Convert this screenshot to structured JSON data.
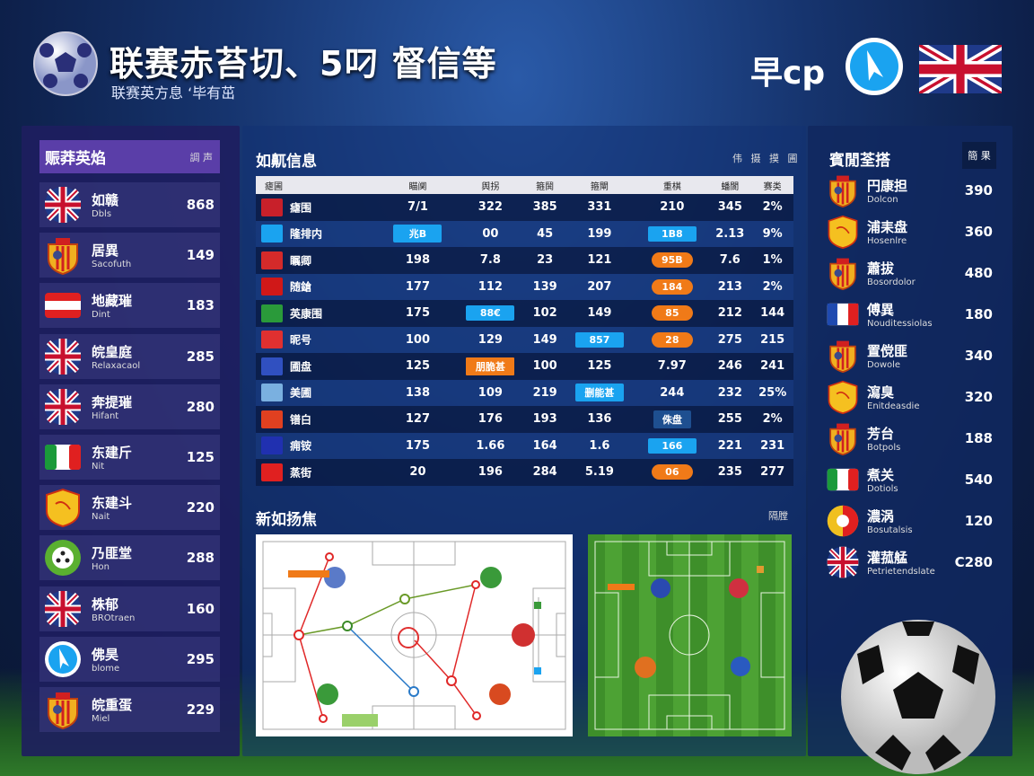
{
  "header": {
    "title": "联赛赤苔切、5叼 督信等",
    "subtitle": "联赛英方息 ‘毕有茁",
    "brand": "早cp",
    "logo_icon": "soccer-ball-icon",
    "brand_icon": "compass-logo-icon",
    "flag_icon": "uk-flag-icon"
  },
  "left_panel": {
    "title": "赈莽英焰",
    "badge": "調 声",
    "items": [
      {
        "name": "如赣",
        "sub": "Dbls",
        "value": "868",
        "icon": "uk"
      },
      {
        "name": "居異",
        "sub": "Sacofuth",
        "value": "149",
        "icon": "crest"
      },
      {
        "name": "地藏璀",
        "sub": "Dint",
        "value": "183",
        "icon": "austria"
      },
      {
        "name": "皖皇庭",
        "sub": "Relaxacaol",
        "value": "285",
        "icon": "uk"
      },
      {
        "name": "奔提璀",
        "sub": "Hifant",
        "value": "280",
        "icon": "uk"
      },
      {
        "name": "东建斤",
        "sub": "Nit",
        "value": "125",
        "icon": "italy"
      },
      {
        "name": "东建斗",
        "sub": "Nait",
        "value": "220",
        "icon": "shield"
      },
      {
        "name": "乃匪堂",
        "sub": "Hon",
        "value": "288",
        "icon": "greenball"
      },
      {
        "name": "株郁",
        "sub": "BROtraen",
        "value": "160",
        "icon": "uk"
      },
      {
        "name": "佛昊",
        "sub": "blome",
        "value": "295",
        "icon": "bluelogo"
      },
      {
        "name": "皖重蛋",
        "sub": "Miel",
        "value": "229",
        "icon": "crest"
      }
    ]
  },
  "table": {
    "title": "如鼿信息",
    "tools": "伟 摄 摸 圃",
    "headers": [
      "瘧圃",
      "瞄阒",
      "舆拐",
      "箍鬨",
      "箍閘",
      "重棋",
      "蟠閬",
      "赛类"
    ],
    "rows": [
      {
        "team": "瘧围",
        "color": "#c8202a",
        "cells": [
          {
            "v": "7/1"
          },
          {
            "v": "322"
          },
          {
            "v": "385"
          },
          {
            "v": "331"
          },
          {
            "v": "210"
          },
          {
            "v": "345"
          },
          {
            "v": "2%"
          }
        ]
      },
      {
        "team": "隆排内",
        "color": "#1aa3f0",
        "cells": [
          {
            "v": "兆B",
            "b": "blue"
          },
          {
            "v": "00"
          },
          {
            "v": "45"
          },
          {
            "v": "199"
          },
          {
            "v": "1B8",
            "b": "blue"
          },
          {
            "v": "2.13"
          },
          {
            "v": "9%"
          }
        ]
      },
      {
        "team": "瞩卿",
        "color": "#d42a2a",
        "cells": [
          {
            "v": "198"
          },
          {
            "v": "7.8"
          },
          {
            "v": "23"
          },
          {
            "v": "121"
          },
          {
            "v": "95B",
            "b": "orange"
          },
          {
            "v": "7.6"
          },
          {
            "v": "1%"
          }
        ]
      },
      {
        "team": "随鎗",
        "color": "#d01818",
        "cells": [
          {
            "v": "177"
          },
          {
            "v": "112"
          },
          {
            "v": "139"
          },
          {
            "v": "207"
          },
          {
            "v": "184",
            "b": "orange"
          },
          {
            "v": "213"
          },
          {
            "v": "2%"
          }
        ]
      },
      {
        "team": "英康围",
        "color": "#2a9a3a",
        "cells": [
          {
            "v": "175"
          },
          {
            "v": "88€",
            "b": "blue"
          },
          {
            "v": "102"
          },
          {
            "v": "149"
          },
          {
            "v": "85",
            "b": "orange"
          },
          {
            "v": "212"
          },
          {
            "v": "144"
          }
        ]
      },
      {
        "team": "昵号",
        "color": "#e03030",
        "cells": [
          {
            "v": "100"
          },
          {
            "v": "129"
          },
          {
            "v": "149"
          },
          {
            "v": "857",
            "b": "blue"
          },
          {
            "v": "28",
            "b": "orange"
          },
          {
            "v": "275"
          },
          {
            "v": "215"
          }
        ]
      },
      {
        "team": "圃盘",
        "color": "#3050c0",
        "cells": [
          {
            "v": "125"
          },
          {
            "v": "朋脆甚",
            "b": "orange sq"
          },
          {
            "v": "100"
          },
          {
            "v": "125"
          },
          {
            "v": "7.97"
          },
          {
            "v": "246"
          },
          {
            "v": "241"
          }
        ]
      },
      {
        "team": "美圃",
        "color": "#7ab0e0",
        "cells": [
          {
            "v": "138"
          },
          {
            "v": "109"
          },
          {
            "v": "219"
          },
          {
            "v": "删能甚",
            "b": "blue"
          },
          {
            "v": "244"
          },
          {
            "v": "232"
          },
          {
            "v": "25%"
          }
        ]
      },
      {
        "team": "镨白",
        "color": "#e04020",
        "cells": [
          {
            "v": "127"
          },
          {
            "v": "176"
          },
          {
            "v": "193"
          },
          {
            "v": "136"
          },
          {
            "v": "侏盘",
            "b": "dark"
          },
          {
            "v": "255"
          },
          {
            "v": "2%"
          }
        ]
      },
      {
        "team": "痈铵",
        "color": "#2030b0",
        "cells": [
          {
            "v": "175"
          },
          {
            "v": "1.66"
          },
          {
            "v": "164"
          },
          {
            "v": "1.6"
          },
          {
            "v": "166",
            "b": "blue"
          },
          {
            "v": "221"
          },
          {
            "v": "231"
          }
        ]
      },
      {
        "team": "蒸街",
        "color": "#e02020",
        "cells": [
          {
            "v": "20"
          },
          {
            "v": "196"
          },
          {
            "v": "284"
          },
          {
            "v": "5.19"
          },
          {
            "v": "06",
            "b": "orange"
          },
          {
            "v": "235"
          },
          {
            "v": "277"
          }
        ]
      }
    ]
  },
  "tactics": {
    "title": "新如扬焦",
    "tools": "隔膛"
  },
  "right_panel": {
    "title": "賓閒荃搭",
    "badge": "簡 果",
    "items": [
      {
        "name": "円康担",
        "sub": "Dolcon",
        "value": "390",
        "icon": "crest"
      },
      {
        "name": "浦耒盘",
        "sub": "Hosenlre",
        "value": "360",
        "icon": "shield"
      },
      {
        "name": "蕭拔",
        "sub": "Bosordolor",
        "value": "480",
        "icon": "crest"
      },
      {
        "name": "傅異",
        "sub": "Nouditessiolas",
        "value": "180",
        "icon": "france"
      },
      {
        "name": "置傥匪",
        "sub": "Dowole",
        "value": "340",
        "icon": "crest"
      },
      {
        "name": "瀉臭",
        "sub": "Enitdeasdie",
        "value": "320",
        "icon": "shield"
      },
      {
        "name": "芳台",
        "sub": "Botpols",
        "value": "188",
        "icon": "crest"
      },
      {
        "name": "煮关",
        "sub": "Dotiols",
        "value": "540",
        "icon": "italy"
      },
      {
        "name": "濃涡",
        "sub": "Bosutalsis",
        "value": "120",
        "icon": "portugal"
      },
      {
        "name": "灌菰艋",
        "sub": "Petrietendslate",
        "value": "C280",
        "icon": "uk"
      }
    ]
  },
  "colors": {
    "accent_purple": "#5a3ea8",
    "badge_blue": "#1aa3f0",
    "badge_orange": "#f07a18"
  }
}
